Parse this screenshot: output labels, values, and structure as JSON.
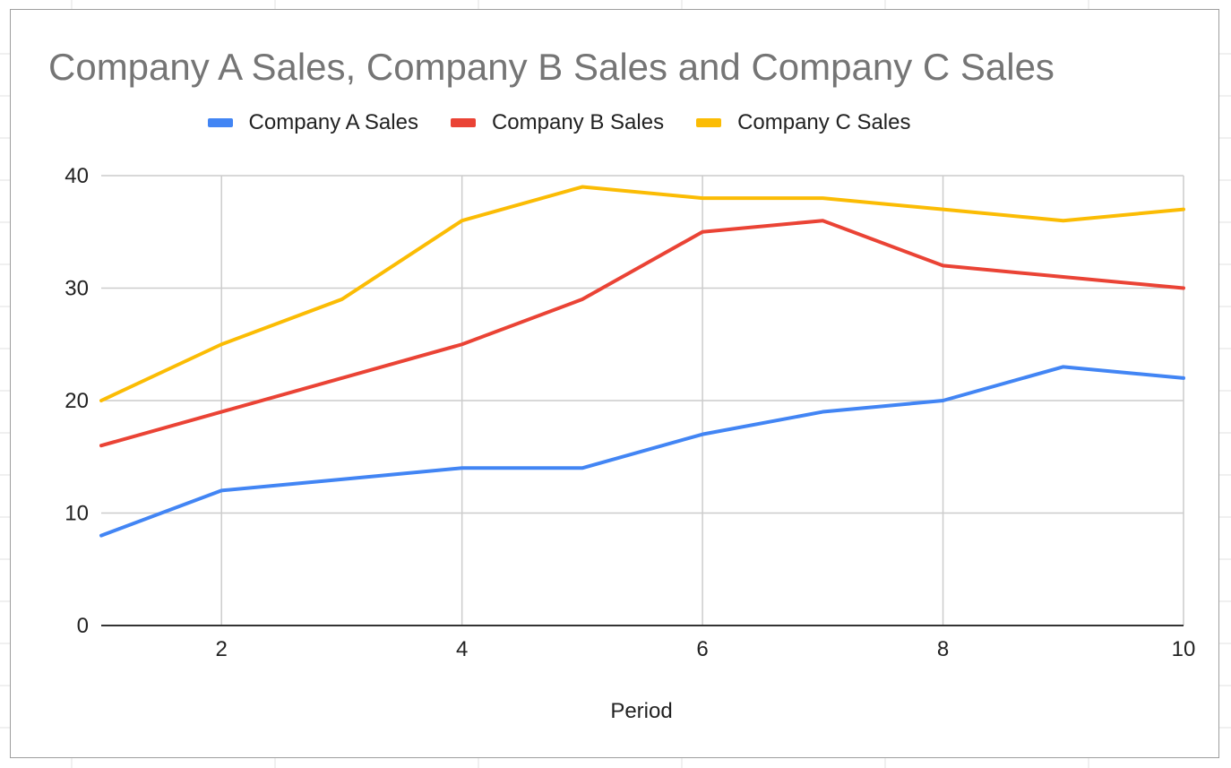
{
  "chart_data": {
    "type": "line",
    "title": "Company A Sales, Company B Sales and Company C Sales",
    "xlabel": "Period",
    "ylabel": "",
    "x": [
      1,
      2,
      3,
      4,
      5,
      6,
      7,
      8,
      9,
      10
    ],
    "xlim": [
      1,
      10
    ],
    "ylim": [
      0,
      40
    ],
    "xticks": [
      2,
      4,
      6,
      8,
      10
    ],
    "yticks": [
      0,
      10,
      20,
      30,
      40
    ],
    "grid": true,
    "legend_position": "top",
    "series": [
      {
        "name": "Company A Sales",
        "color": "#4285f4",
        "values": [
          8,
          12,
          13,
          14,
          14,
          17,
          19,
          20,
          23,
          22
        ]
      },
      {
        "name": "Company B Sales",
        "color": "#ea4335",
        "values": [
          16,
          19,
          22,
          25,
          29,
          35,
          36,
          32,
          31,
          30
        ]
      },
      {
        "name": "Company C Sales",
        "color": "#fbbc04",
        "values": [
          20,
          25,
          29,
          36,
          39,
          38,
          38,
          37,
          36,
          37
        ]
      }
    ]
  }
}
